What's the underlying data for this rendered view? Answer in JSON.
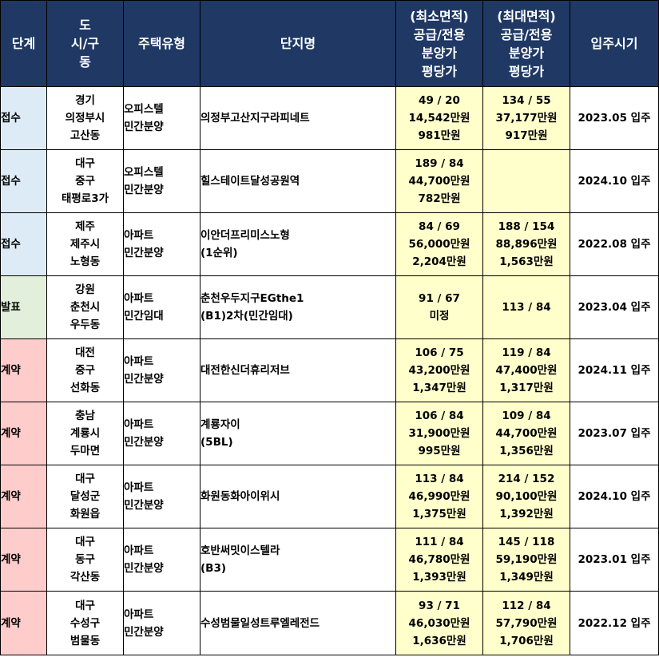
{
  "table": {
    "headers": [
      [
        "단계"
      ],
      [
        "도",
        "시/구",
        "동"
      ],
      [
        "주택유형"
      ],
      [
        "단지명"
      ],
      [
        "(최소면적)",
        "공급/전용",
        "분양가",
        "평당가"
      ],
      [
        "(최대면적)",
        "공급/전용",
        "분양가",
        "평당가"
      ],
      [
        "입주시기"
      ]
    ],
    "rows": [
      {
        "stage": "접수",
        "stage_color": "#ddebf7",
        "loc": [
          "경기",
          "의정부시",
          "고산동"
        ],
        "type": [
          "오피스텔",
          "민간분양"
        ],
        "name": [
          "의정부고산지구라피네트"
        ],
        "min": [
          "49 / 20",
          "14,542만원",
          "981만원"
        ],
        "max": [
          "134 / 55",
          "37,177만원",
          "917만원"
        ],
        "date": "2023.05 입주"
      },
      {
        "stage": "접수",
        "stage_color": "#ddebf7",
        "loc": [
          "대구",
          "중구",
          "태평로3가"
        ],
        "type": [
          "오피스텔",
          "민간분양"
        ],
        "name": [
          "힐스테이트달성공원역"
        ],
        "min": [
          "189 / 84",
          "44,700만원",
          "782만원"
        ],
        "max": [],
        "date": "2024.10 입주"
      },
      {
        "stage": "접수",
        "stage_color": "#ddebf7",
        "loc": [
          "제주",
          "제주시",
          "노형동"
        ],
        "type": [
          "아파트",
          "민간분양"
        ],
        "name": [
          "이안더프리미스노형",
          "(1순위)"
        ],
        "min": [
          "84 / 69",
          "56,000만원",
          "2,204만원"
        ],
        "max": [
          "188 / 154",
          "88,896만원",
          "1,563만원"
        ],
        "date": "2022.08 입주"
      },
      {
        "stage": "발표",
        "stage_color": "#e2efda",
        "loc": [
          "강원",
          "춘천시",
          "우두동"
        ],
        "type": [
          "아파트",
          "민간임대"
        ],
        "name": [
          "춘천우두지구EGthe1",
          "(B1)2차(민간임대)"
        ],
        "min": [
          "91 / 67",
          "미정"
        ],
        "max": [
          "113 / 84"
        ],
        "date": "2023.04 입주"
      },
      {
        "stage": "계약",
        "stage_color": "#ffcccc",
        "loc": [
          "대전",
          "중구",
          "선화동"
        ],
        "type": [
          "아파트",
          "민간분양"
        ],
        "name": [
          "대전한신더휴리저브"
        ],
        "min": [
          "106 / 75",
          "43,200만원",
          "1,347만원"
        ],
        "max": [
          "119 / 84",
          "47,400만원",
          "1,317만원"
        ],
        "date": "2024.11 입주"
      },
      {
        "stage": "계약",
        "stage_color": "#ffcccc",
        "loc": [
          "충남",
          "계룡시",
          "두마면"
        ],
        "type": [
          "아파트",
          "민간분양"
        ],
        "name": [
          "계룡자이",
          "(5BL)"
        ],
        "min": [
          "106 / 84",
          "31,900만원",
          "995만원"
        ],
        "max": [
          "109 / 84",
          "44,700만원",
          "1,356만원"
        ],
        "date": "2023.07 입주"
      },
      {
        "stage": "계약",
        "stage_color": "#ffcccc",
        "loc": [
          "대구",
          "달성군",
          "화원읍"
        ],
        "type": [
          "아파트",
          "민간분양"
        ],
        "name": [
          "화원동화아이위시"
        ],
        "min": [
          "113 / 84",
          "46,990만원",
          "1,375만원"
        ],
        "max": [
          "214 / 152",
          "90,100만원",
          "1,392만원"
        ],
        "date": "2024.10 입주"
      },
      {
        "stage": "계약",
        "stage_color": "#ffcccc",
        "loc": [
          "대구",
          "동구",
          "각산동"
        ],
        "type": [
          "아파트",
          "민간분양"
        ],
        "name": [
          "호반써밋이스텔라",
          "(B3)"
        ],
        "min": [
          "111 / 84",
          "46,780만원",
          "1,393만원"
        ],
        "max": [
          "145 / 118",
          "59,190만원",
          "1,349만원"
        ],
        "date": "2023.01 입주"
      },
      {
        "stage": "계약",
        "stage_color": "#ffcccc",
        "loc": [
          "대구",
          "수성구",
          "범물동"
        ],
        "type": [
          "아파트",
          "민간분양"
        ],
        "name": [
          "수성범물일성트루엘레전드"
        ],
        "min": [
          "93 / 71",
          "46,030만원",
          "1,636만원"
        ],
        "max": [
          "112 / 84",
          "57,790만원",
          "1,706만원"
        ],
        "date": "2022.12 입주"
      }
    ]
  },
  "colors": {
    "header_bg": "#1f3864",
    "header_text": "#ffffff",
    "price_bg": "#ffffcc",
    "stage_receive": "#ddebf7",
    "stage_announce": "#e2efda",
    "stage_contract": "#ffcccc"
  }
}
